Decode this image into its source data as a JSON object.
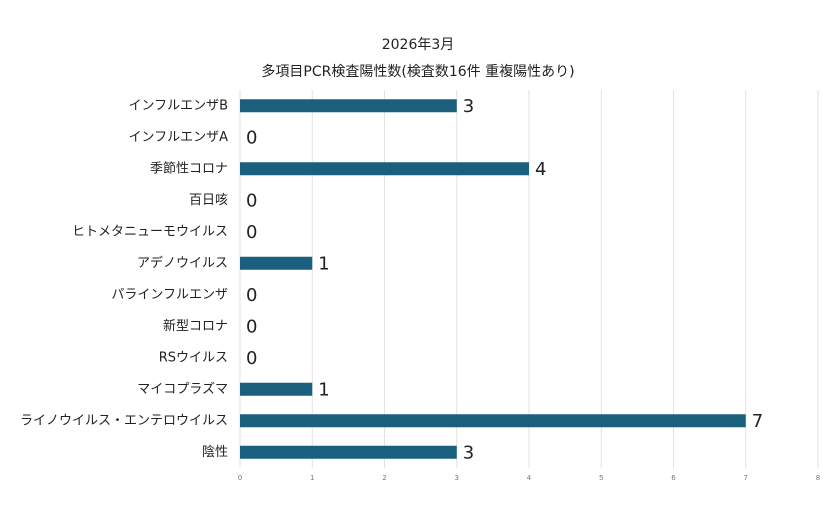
{
  "chart_data": {
    "type": "bar",
    "orientation": "horizontal",
    "title": "2026年3月",
    "subtitle": "多項目PCR検査陽性数(検査数16件 重複陽性あり)",
    "categories": [
      "インフルエンザB",
      "インフルエンザA",
      "季節性コロナ",
      "百日咳",
      "ヒトメタニューモウイルス",
      "アデノウイルス",
      "パラインフルエンザ",
      "新型コロナ",
      "RSウイルス",
      "マイコプラズマ",
      "ライノウイルス・エンテロウイルス",
      "陰性"
    ],
    "values": [
      3,
      0,
      4,
      0,
      0,
      1,
      0,
      0,
      0,
      1,
      7,
      3
    ],
    "color": "#1b5f7f",
    "xlim": [
      0,
      8
    ],
    "xticks": [
      0,
      1,
      2,
      3,
      4,
      5,
      6,
      7,
      8
    ],
    "grid": true
  }
}
